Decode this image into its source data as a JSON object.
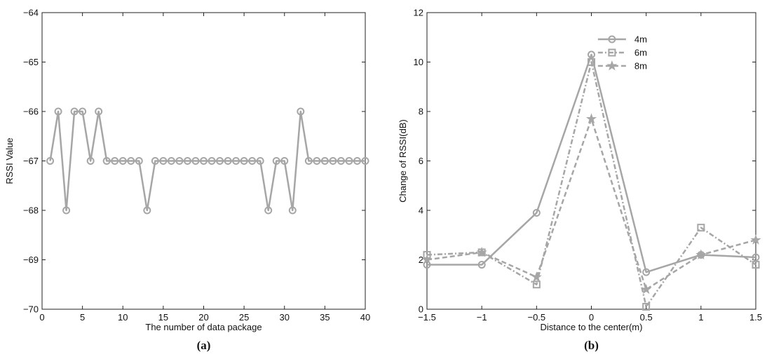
{
  "chart_data": [
    {
      "type": "line",
      "caption": "(a)",
      "xlabel": "The number of data package",
      "ylabel": "RSSI Value",
      "xlim": [
        0,
        40
      ],
      "ylim": [
        -70,
        -64
      ],
      "xticks": [
        0,
        5,
        10,
        15,
        20,
        25,
        30,
        35,
        40
      ],
      "yticks": [
        -70,
        -69,
        -68,
        -67,
        -66,
        -65,
        -64
      ],
      "xtick_labels": [
        "0",
        "5",
        "10",
        "15",
        "20",
        "25",
        "30",
        "35",
        "40"
      ],
      "ytick_labels": [
        "−70",
        "−69",
        "−68",
        "−67",
        "−66",
        "−65",
        "−64"
      ],
      "grid": false,
      "series": [
        {
          "color": "#a6a6a6",
          "marker": "circle",
          "linestyle": "solid",
          "x": [
            1,
            2,
            3,
            4,
            5,
            6,
            7,
            8,
            9,
            10,
            11,
            12,
            13,
            14,
            15,
            16,
            17,
            18,
            19,
            20,
            21,
            22,
            23,
            24,
            25,
            26,
            27,
            28,
            29,
            30,
            31,
            32,
            33,
            34,
            35,
            36,
            37,
            38,
            39,
            40
          ],
          "values": [
            -67,
            -66,
            -68,
            -66,
            -66,
            -67,
            -66,
            -67,
            -67,
            -67,
            -67,
            -67,
            -68,
            -67,
            -67,
            -67,
            -67,
            -67,
            -67,
            -67,
            -67,
            -67,
            -67,
            -67,
            -67,
            -67,
            -67,
            -68,
            -67,
            -67,
            -68,
            -66,
            -67,
            -67,
            -67,
            -67,
            -67,
            -67,
            -67,
            -67
          ]
        }
      ]
    },
    {
      "type": "line",
      "caption": "(b)",
      "xlabel": "Distance to the center(m)",
      "ylabel": "Change of RSSI(dB)",
      "xlim": [
        -1.5,
        1.5
      ],
      "ylim": [
        0,
        12
      ],
      "xticks": [
        -1.5,
        -1,
        -0.5,
        0,
        0.5,
        1,
        1.5
      ],
      "yticks": [
        0,
        2,
        4,
        6,
        8,
        10,
        12
      ],
      "xtick_labels": [
        "−1.5",
        "−1",
        "−0.5",
        "0",
        "0.5",
        "1",
        "1.5"
      ],
      "ytick_labels": [
        "0",
        "2",
        "4",
        "6",
        "8",
        "10",
        "12"
      ],
      "grid": false,
      "legend_position": "top-right",
      "x": [
        -1.5,
        -1,
        -0.5,
        0,
        0.5,
        1,
        1.5
      ],
      "series": [
        {
          "name": "4m",
          "color": "#a6a6a6",
          "marker": "circle",
          "linestyle": "solid",
          "values": [
            1.8,
            1.8,
            3.9,
            10.3,
            1.5,
            2.2,
            2.1
          ]
        },
        {
          "name": "6m",
          "color": "#a6a6a6",
          "marker": "square",
          "linestyle": "dashdot",
          "values": [
            2.2,
            2.3,
            1.0,
            10.0,
            0.1,
            3.3,
            1.8
          ]
        },
        {
          "name": "8m",
          "color": "#a6a6a6",
          "marker": "star",
          "linestyle": "dashed",
          "values": [
            2.0,
            2.3,
            1.3,
            7.7,
            0.8,
            2.2,
            2.8
          ]
        }
      ]
    }
  ]
}
